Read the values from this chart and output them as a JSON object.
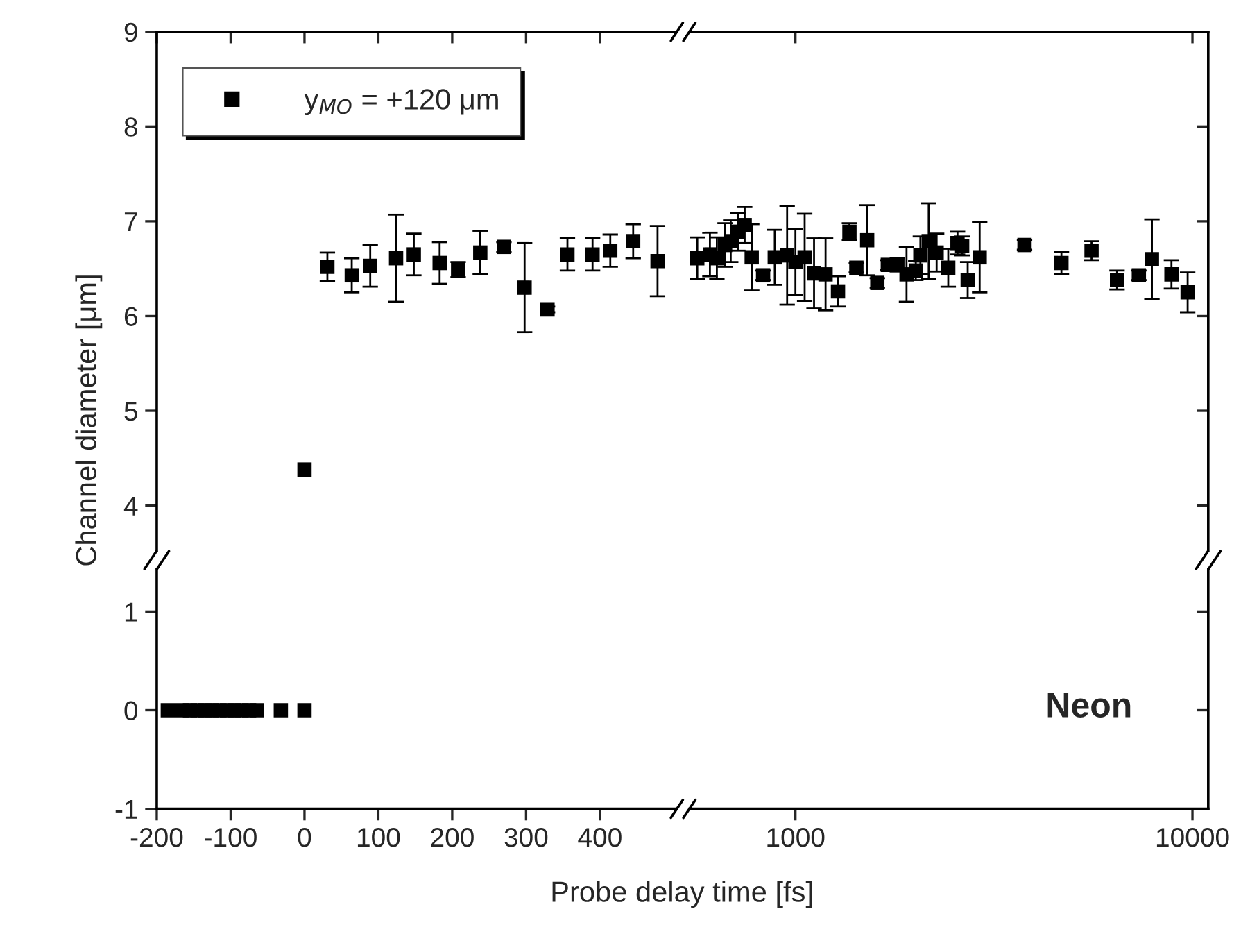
{
  "chart_data": [
    {
      "type": "scatter",
      "ylabel": "Channel diameter [μm]",
      "legend": "top left",
      "marker": "square",
      "tick_labels": "y",
      "x": [
        0,
        31,
        64,
        89,
        124,
        148,
        183,
        208,
        238,
        270,
        298,
        329,
        356,
        390,
        414,
        445,
        478
      ],
      "series": [
        {
          "name": "y$_{MO}$ = +120 μm",
          "color": "#000000",
          "values": [
            4.38,
            6.52,
            6.43,
            6.53,
            6.61,
            6.65,
            6.56,
            6.49,
            6.67,
            6.73,
            6.3,
            6.07,
            6.65,
            6.65,
            6.69,
            6.79,
            6.58
          ],
          "errors": [
            null,
            0.15,
            0.18,
            0.22,
            0.46,
            0.22,
            0.22,
            0.08,
            0.23,
            0.05,
            0.47,
            0.03,
            0.17,
            0.17,
            0.17,
            0.18,
            0.37
          ]
        }
      ],
      "xlim": [
        -200,
        504
      ],
      "ylim": [
        3.52,
        9
      ],
      "xticks": [
        -200,
        -100,
        0,
        100,
        200,
        300,
        400
      ],
      "yticks": [
        4,
        5,
        6,
        7,
        8,
        9
      ]
    },
    {
      "type": "scatter",
      "xlabel": "Probe delay time [fs]",
      "marker": "square",
      "x": [
        -185,
        -165,
        -155,
        -145,
        -135,
        -125,
        -115,
        -105,
        -95,
        -85,
        -75,
        -65,
        -32,
        0
      ],
      "series": [
        {
          "color": "#000000",
          "values": [
            0,
            0,
            0,
            0,
            0,
            0,
            0,
            0,
            0,
            0,
            0,
            0,
            0,
            0
          ]
        }
      ],
      "xlim": [
        -200,
        504
      ],
      "ylim": [
        -1,
        1.43
      ],
      "xticks": [
        -200,
        -100,
        0,
        100,
        200,
        300,
        400
      ],
      "yticks": [
        -1,
        0,
        1
      ]
    },
    {
      "type": "scatter",
      "log": "x",
      "marker": "square",
      "tick_labels": false,
      "x": [
        566,
        609,
        634,
        665,
        687,
        716,
        745,
        776,
        829,
        887,
        953,
        1000,
        1055,
        1114,
        1191,
        1280,
        1368,
        1424,
        1516,
        1608,
        1709,
        1806,
        1905,
        2010,
        2064,
        2166,
        2268,
        2426,
        2560,
        2630,
        2716,
        2911,
        3776,
        4677,
        5570,
        6457,
        7328,
        7905,
        8854,
        9725
      ],
      "series": [
        {
          "color": "#000000",
          "values": [
            6.61,
            6.65,
            6.61,
            6.75,
            6.79,
            6.89,
            6.96,
            6.62,
            6.43,
            6.62,
            6.64,
            6.57,
            6.62,
            6.45,
            6.44,
            6.26,
            6.89,
            6.51,
            6.8,
            6.35,
            6.54,
            6.54,
            6.44,
            6.48,
            6.64,
            6.79,
            6.67,
            6.51,
            6.77,
            6.74,
            6.38,
            6.62,
            6.75,
            6.56,
            6.69,
            6.38,
            6.43,
            6.6,
            6.44,
            6.25
          ],
          "errors": [
            0.22,
            0.23,
            0.22,
            0.23,
            0.22,
            0.2,
            0.19,
            0.35,
            0.05,
            0.29,
            0.52,
            0.35,
            0.46,
            0.37,
            0.38,
            0.16,
            0.09,
            0.05,
            0.37,
            0.05,
            0.05,
            0.07,
            0.29,
            0.1,
            0.2,
            0.4,
            0.2,
            0.2,
            0.12,
            0.1,
            0.19,
            0.37,
            0.05,
            0.12,
            0.1,
            0.1,
            0.05,
            0.42,
            0.15,
            0.21
          ]
        }
      ],
      "xlim": [
        541,
        10960
      ],
      "ylim": [
        3.52,
        9
      ],
      "xticks": [
        1000,
        10000
      ],
      "yticks": [
        4,
        5,
        6,
        7,
        8,
        9
      ]
    },
    {
      "type": "scatter",
      "log": "x",
      "tick_labels": "x",
      "annotations": [
        "Neon"
      ],
      "xlim": [
        541,
        10960
      ],
      "ylim": [
        -1,
        1.43
      ],
      "xticks": [
        1000,
        10000
      ],
      "yticks": [
        -1,
        0,
        1
      ]
    }
  ]
}
